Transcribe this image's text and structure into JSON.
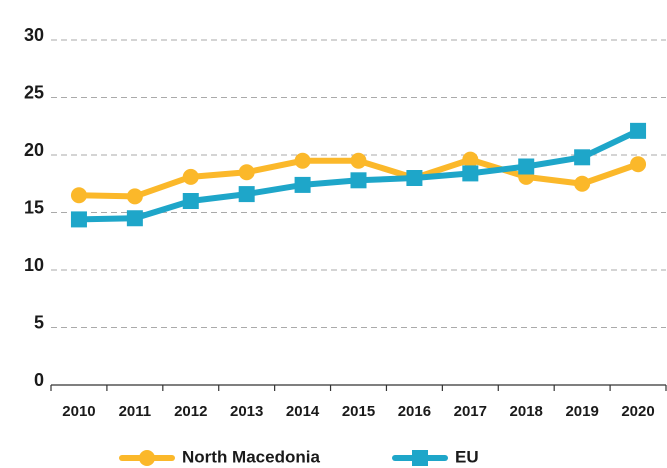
{
  "chart_data": {
    "type": "line",
    "categories": [
      "2010",
      "2011",
      "2012",
      "2013",
      "2014",
      "2015",
      "2016",
      "2017",
      "2018",
      "2019",
      "2020"
    ],
    "series": [
      {
        "name": "North Macedonia",
        "color": "#fbb82a",
        "marker": "circle",
        "values": [
          16.5,
          16.4,
          18.1,
          18.5,
          19.5,
          19.5,
          18.0,
          19.6,
          18.1,
          17.5,
          19.2
        ]
      },
      {
        "name": "EU",
        "color": "#1ea6c9",
        "marker": "square",
        "values": [
          14.4,
          14.5,
          16.0,
          16.6,
          17.4,
          17.8,
          18.0,
          18.4,
          19.0,
          19.8,
          22.1
        ]
      }
    ],
    "ylim": [
      0,
      30
    ],
    "yticks": [
      0,
      5,
      10,
      15,
      20,
      25,
      30
    ],
    "grid": true,
    "legend": "bottom"
  }
}
